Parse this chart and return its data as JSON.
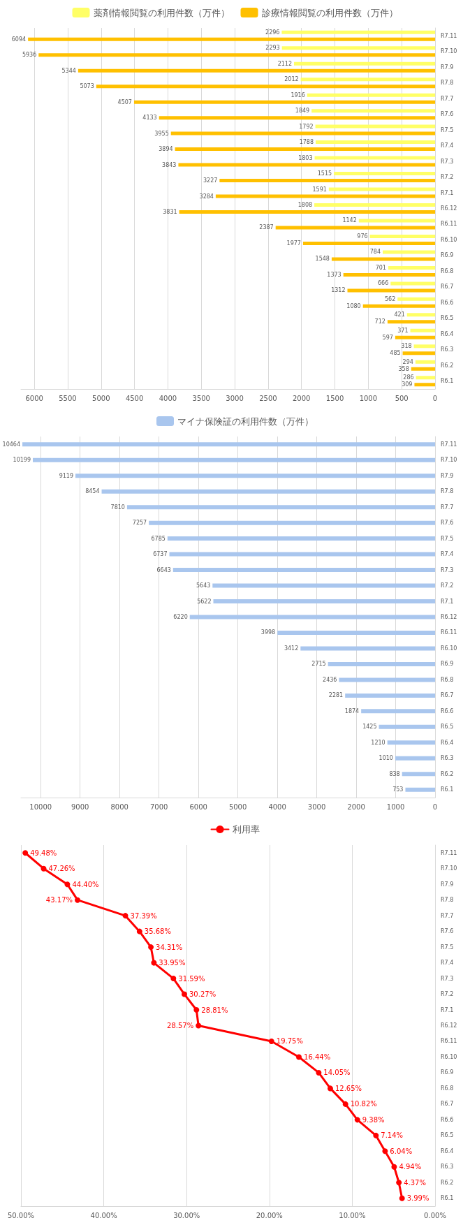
{
  "chart_data": [
    {
      "type": "bar",
      "orientation": "horizontal",
      "categories": [
        "R7.11",
        "R7.10",
        "R7.9",
        "R7.8",
        "R7.7",
        "R7.6",
        "R7.5",
        "R7.4",
        "R7.3",
        "R7.2",
        "R7.1",
        "R6.12",
        "R6.11",
        "R6.10",
        "R6.9",
        "R6.8",
        "R6.7",
        "R6.6",
        "R6.5",
        "R6.4",
        "R6.3",
        "R6.2",
        "R6.1"
      ],
      "series": [
        {
          "name": "薬剤情報閲覧の利用件数（万件）",
          "color": "#ffff66",
          "values": [
            2296,
            2293,
            2112,
            2012,
            1916,
            1849,
            1792,
            1788,
            1803,
            1515,
            1591,
            1808,
            1142,
            976,
            784,
            701,
            666,
            562,
            421,
            371,
            318,
            294,
            286
          ]
        },
        {
          "name": "診療情報閲覧の利用件数（万件）",
          "color": "#ffc000",
          "values": [
            6094,
            5936,
            5344,
            5073,
            4507,
            4133,
            3955,
            3894,
            3843,
            3227,
            3284,
            3831,
            2387,
            1977,
            1548,
            1373,
            1312,
            1080,
            712,
            597,
            485,
            358,
            309
          ]
        }
      ],
      "xlim": [
        6200,
        0
      ],
      "xticks": [
        6000,
        5500,
        5000,
        4500,
        4000,
        3500,
        3000,
        2500,
        2000,
        1500,
        1000,
        500,
        0
      ],
      "grid": "x",
      "legend": "top",
      "data_labels": true
    },
    {
      "type": "bar",
      "orientation": "horizontal",
      "categories": [
        "R7.11",
        "R7.10",
        "R7.9",
        "R7.8",
        "R7.7",
        "R7.6",
        "R7.5",
        "R7.4",
        "R7.3",
        "R7.2",
        "R7.1",
        "R6.12",
        "R6.11",
        "R6.10",
        "R6.9",
        "R6.8",
        "R6.7",
        "R6.6",
        "R6.5",
        "R6.4",
        "R6.3",
        "R6.2",
        "R6.1"
      ],
      "series": [
        {
          "name": "マイナ保険証の利用件数（万件）",
          "color": "#a9c6ee",
          "values": [
            10464,
            10199,
            9119,
            8454,
            7810,
            7257,
            6785,
            6737,
            6643,
            5643,
            5622,
            6220,
            3998,
            3412,
            2715,
            2436,
            2281,
            1874,
            1425,
            1210,
            1010,
            838,
            753
          ]
        }
      ],
      "xlim": [
        10500,
        0
      ],
      "xticks": [
        10000,
        9000,
        8000,
        7000,
        6000,
        5000,
        4000,
        3000,
        2000,
        1000,
        0
      ],
      "grid": "x",
      "legend": "top",
      "data_labels": true
    },
    {
      "type": "line",
      "orientation": "horizontal",
      "categories": [
        "R7.11",
        "R7.10",
        "R7.9",
        "R7.8",
        "R7.7",
        "R7.6",
        "R7.5",
        "R7.4",
        "R7.3",
        "R7.2",
        "R7.1",
        "R6.12",
        "R6.11",
        "R6.10",
        "R6.9",
        "R6.8",
        "R6.7",
        "R6.6",
        "R6.5",
        "R6.4",
        "R6.3",
        "R6.2",
        "R6.1"
      ],
      "series": [
        {
          "name": "利用率",
          "color": "#ff0000",
          "values": [
            49.48,
            47.26,
            44.4,
            43.17,
            37.39,
            35.68,
            34.31,
            33.95,
            31.59,
            30.27,
            28.81,
            28.57,
            19.75,
            16.44,
            14.05,
            12.65,
            10.82,
            9.38,
            7.14,
            6.04,
            4.94,
            4.37,
            3.99
          ],
          "value_labels": [
            "49.48%",
            "47.26%",
            "44.40%",
            "43.17%",
            "37.39%",
            "35.68%",
            "34.31%",
            "33.95%",
            "31.59%",
            "30.27%",
            "28.81%",
            "28.57%",
            "19.75%",
            "16.44%",
            "14.05%",
            "12.65%",
            "10.82%",
            "9.38%",
            "7.14%",
            "6.04%",
            "4.94%",
            "4.37%",
            "3.99%"
          ]
        }
      ],
      "xlim": [
        50,
        0
      ],
      "xticks": [
        {
          "value": 50,
          "label": "50.00%"
        },
        {
          "value": 40,
          "label": "40.00%"
        },
        {
          "value": 30,
          "label": "30.00%"
        },
        {
          "value": 20,
          "label": "20.00%"
        },
        {
          "value": 10,
          "label": "10.00%"
        },
        {
          "value": 0,
          "label": "0.00%"
        }
      ],
      "grid": "x",
      "legend": "top",
      "marker": "circle"
    }
  ]
}
